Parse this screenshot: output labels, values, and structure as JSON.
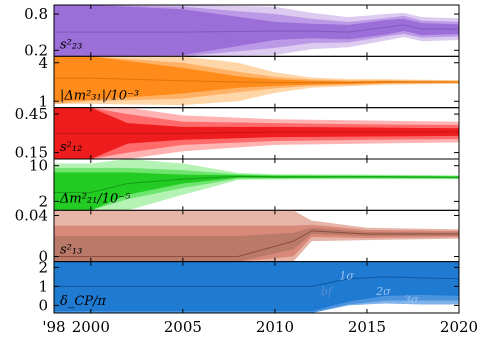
{
  "chart_data": {
    "type": "area",
    "x_ticks": [
      {
        "label": "'98",
        "year": 1998
      },
      {
        "label": "2000",
        "year": 2000
      },
      {
        "label": "2005",
        "year": 2005
      },
      {
        "label": "2010",
        "year": 2010
      },
      {
        "label": "2015",
        "year": 2015
      },
      {
        "label": "2020",
        "year": 2020
      }
    ],
    "xlim": [
      1998,
      2020
    ],
    "panels": [
      {
        "key": "s23",
        "label": "s²₂₃",
        "ylim": [
          0.1,
          0.95
        ],
        "yticks": [
          "0.8",
          "0.2"
        ],
        "ytick_values": [
          0.8,
          0.2
        ],
        "colors": [
          "#dccaf0",
          "#bb99e6",
          "#9b6ed8"
        ],
        "line_color": "#7a4fb5",
        "years": [
          1998,
          2000,
          2005,
          2010,
          2012,
          2014,
          2016,
          2017,
          2018,
          2020
        ],
        "center": [
          0.5,
          0.5,
          0.5,
          0.52,
          0.52,
          0.5,
          0.58,
          0.62,
          0.55,
          0.55
        ],
        "band1": [
          0.45,
          0.45,
          0.38,
          0.15,
          0.12,
          0.12,
          0.12,
          0.1,
          0.1,
          0.08
        ],
        "band2": [
          0.45,
          0.45,
          0.42,
          0.28,
          0.2,
          0.17,
          0.15,
          0.15,
          0.14,
          0.12
        ],
        "band3": [
          0.45,
          0.45,
          0.45,
          0.4,
          0.3,
          0.25,
          0.22,
          0.2,
          0.2,
          0.18
        ]
      },
      {
        "key": "dm31",
        "label": "|Δm²₃₁|/10⁻³",
        "ylim": [
          0.5,
          4.5
        ],
        "yticks": [
          "4",
          "1"
        ],
        "ytick_values": [
          4,
          1
        ],
        "colors": [
          "#ffd6a8",
          "#ffb266",
          "#ff8c1a"
        ],
        "line_color": "#d06a00",
        "years": [
          1998,
          2000,
          2005,
          2008,
          2010,
          2012,
          2014,
          2016,
          2018,
          2020
        ],
        "center": [
          2.8,
          2.8,
          2.6,
          2.5,
          2.45,
          2.45,
          2.45,
          2.5,
          2.5,
          2.5
        ],
        "band1": [
          1.8,
          1.7,
          1.0,
          0.45,
          0.25,
          0.15,
          0.1,
          0.08,
          0.06,
          0.05
        ],
        "band2": [
          2.0,
          1.8,
          1.4,
          0.8,
          0.45,
          0.25,
          0.18,
          0.14,
          0.12,
          0.1
        ],
        "band3": [
          2.0,
          2.0,
          1.9,
          1.5,
          0.8,
          0.4,
          0.28,
          0.22,
          0.18,
          0.15
        ]
      },
      {
        "key": "s12",
        "label": "s²₁₂",
        "ylim": [
          0.1,
          0.5
        ],
        "yticks": [
          "0.45",
          "0.15"
        ],
        "ytick_values": [
          0.45,
          0.15
        ],
        "colors": [
          "#ffb3b3",
          "#ff6b6b",
          "#ee1c1c"
        ],
        "line_color": "#b51010",
        "years": [
          1998,
          2000,
          2002,
          2005,
          2010,
          2015,
          2020
        ],
        "center": [
          0.3,
          0.3,
          0.3,
          0.3,
          0.31,
          0.31,
          0.31
        ],
        "band1": [
          0.2,
          0.2,
          0.08,
          0.05,
          0.04,
          0.035,
          0.03
        ],
        "band2": [
          0.2,
          0.2,
          0.15,
          0.09,
          0.07,
          0.06,
          0.055
        ],
        "band3": [
          0.2,
          0.2,
          0.2,
          0.14,
          0.1,
          0.09,
          0.08
        ]
      },
      {
        "key": "dm21",
        "label": "Δm²₂₁/10⁻⁵",
        "ylim": [
          0,
          11.5
        ],
        "yticks": [
          "10",
          "2"
        ],
        "ytick_values": [
          10,
          2
        ],
        "colors": [
          "#b4f3b4",
          "#6fe56f",
          "#22cc22"
        ],
        "line_color": "#118811",
        "years": [
          1998,
          2000,
          2002,
          2005,
          2008,
          2010,
          2015,
          2020
        ],
        "center": [
          4,
          4,
          6,
          7,
          7.6,
          7.5,
          7.5,
          7.4
        ],
        "band1": [
          4.5,
          4.5,
          2.5,
          1.0,
          0.3,
          0.25,
          0.2,
          0.18
        ],
        "band2": [
          5.5,
          5.5,
          3.5,
          2.0,
          0.5,
          0.4,
          0.35,
          0.3
        ],
        "band3": [
          6.5,
          6.5,
          6.0,
          3.5,
          0.8,
          0.6,
          0.5,
          0.45
        ]
      },
      {
        "key": "s13",
        "label": "s²₁₃",
        "ylim": [
          -0.005,
          0.045
        ],
        "yticks": [
          "0.04",
          "0"
        ],
        "ytick_values": [
          0.04,
          0
        ],
        "colors": [
          "#e7b5a8",
          "#d9897a",
          "#b97a6a"
        ],
        "line_color": "#7a3a2a",
        "years": [
          1998,
          2005,
          2008,
          2011,
          2012,
          2015,
          2020
        ],
        "center": [
          0,
          0,
          0.0,
          0.015,
          0.025,
          0.022,
          0.022
        ],
        "band1": [
          0.02,
          0.02,
          0.02,
          0.008,
          0.003,
          0.002,
          0.0015
        ],
        "band2": [
          0.03,
          0.03,
          0.03,
          0.015,
          0.006,
          0.004,
          0.003
        ],
        "band3": [
          0.045,
          0.045,
          0.045,
          0.035,
          0.01,
          0.006,
          0.0045
        ]
      },
      {
        "key": "dcp",
        "label": "δ_CP/π",
        "ylim": [
          -0.4,
          2.3
        ],
        "yticks": [
          "2",
          "1",
          "0"
        ],
        "ytick_values": [
          2,
          1,
          0
        ],
        "colors": [
          "#7fb3ea",
          "#4c94de",
          "#1f7ad1"
        ],
        "line_color": "#0b4a8a",
        "years": [
          1998,
          2012,
          2014,
          2016,
          2018,
          2020
        ],
        "center": [
          1,
          1,
          1.4,
          1.5,
          1.45,
          1.4
        ],
        "band1": [
          1.3,
          1.3,
          1.2,
          1.0,
          0.9,
          0.9
        ],
        "band2": [
          1.4,
          1.4,
          1.35,
          1.25,
          1.2,
          1.15
        ],
        "band3": [
          1.4,
          1.4,
          1.4,
          1.4,
          1.4,
          1.35
        ],
        "annotations": [
          {
            "text": "1σ",
            "year": 2013.5,
            "value": 1.35
          },
          {
            "text": "bf",
            "year": 2012.5,
            "value": 0.55
          },
          {
            "text": "2σ",
            "year": 2015.5,
            "value": 0.55
          },
          {
            "text": "3σ",
            "year": 2017,
            "value": 0.1
          }
        ]
      }
    ]
  }
}
